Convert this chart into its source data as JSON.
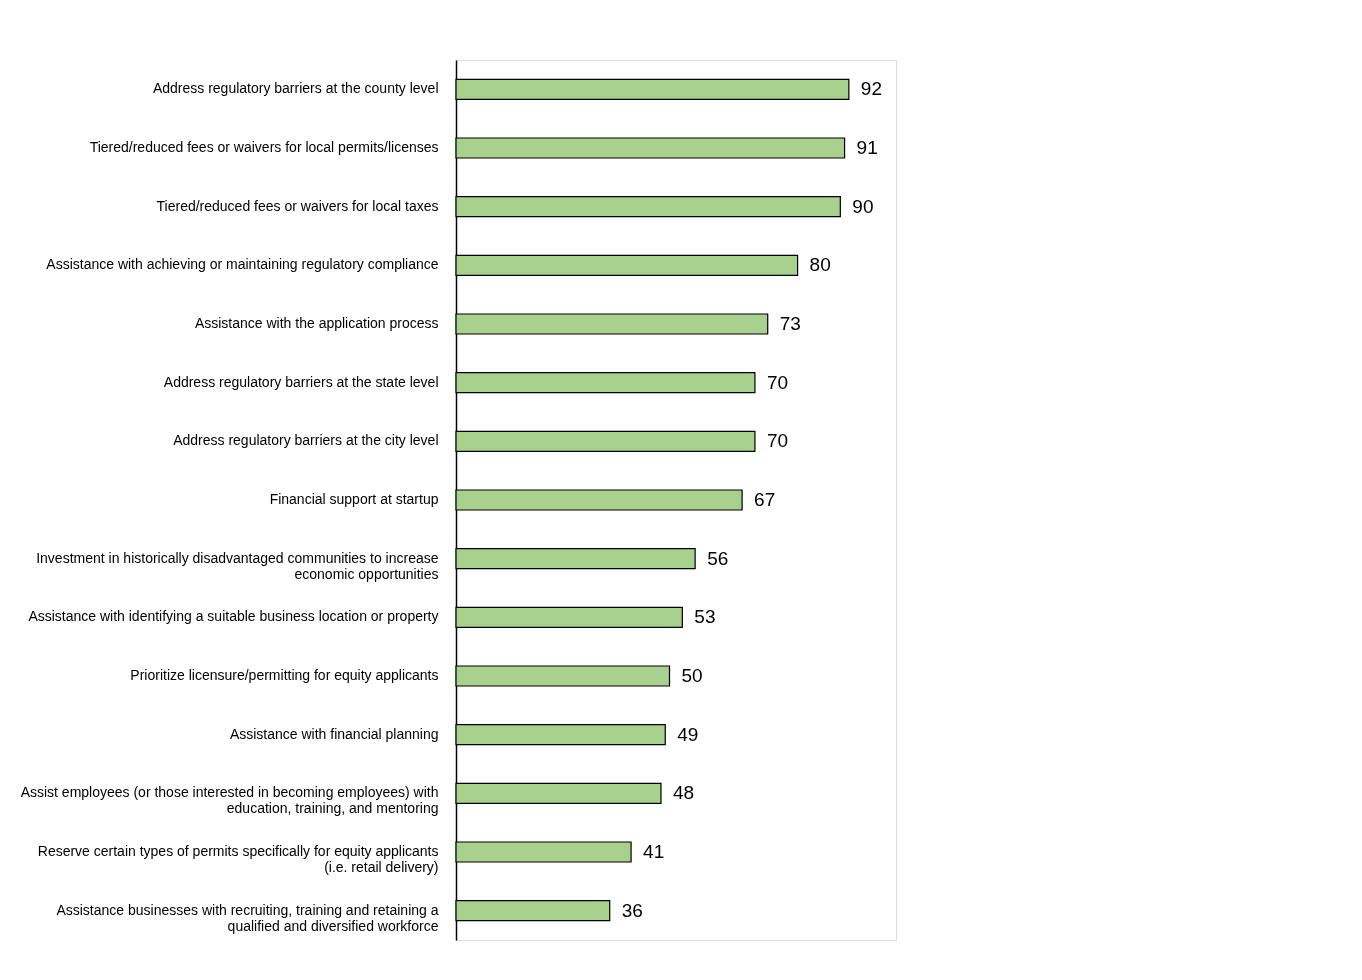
{
  "chart_data": {
    "type": "bar",
    "orientation": "horizontal",
    "data_labels": true,
    "categories": [
      "Address regulatory barriers at the county level",
      "Tiered/reduced fees or waivers for local permits/licenses",
      "Tiered/reduced fees or waivers for local taxes",
      "Assistance with achieving or maintaining regulatory compliance",
      "Assistance with the application process",
      "Address regulatory barriers at the state level",
      "Address regulatory barriers at the city level",
      "Financial support at startup",
      "Investment in historically disadvantaged communities to increase economic opportunities",
      "Assistance with identifying a suitable business location or property",
      "Prioritize licensure/permitting for equity applicants",
      "Assistance with financial planning",
      "Assist employees (or those interested in becoming employees) with education, training, and mentoring",
      "Reserve certain types of permits specifically for equity applicants (i.e. retail delivery)",
      "Assistance businesses with recruiting, training and retaining a qualified and diversified workforce"
    ],
    "values": [
      92,
      91,
      90,
      80,
      73,
      70,
      70,
      67,
      56,
      53,
      50,
      49,
      48,
      41,
      36
    ],
    "color": "#a9d18e"
  }
}
